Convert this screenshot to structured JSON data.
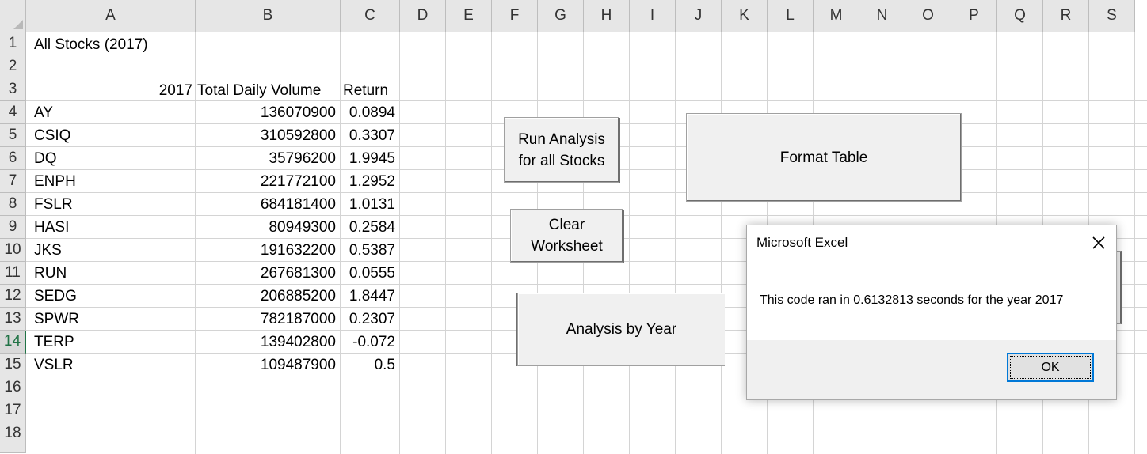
{
  "columns": [
    "A",
    "B",
    "C",
    "D",
    "E",
    "F",
    "G",
    "H",
    "I",
    "J",
    "K",
    "L",
    "M",
    "N",
    "O",
    "P",
    "Q",
    "R",
    "S"
  ],
  "rows": [
    "1",
    "2",
    "3",
    "4",
    "5",
    "6",
    "7",
    "8",
    "9",
    "10",
    "11",
    "12",
    "13",
    "14",
    "15",
    "16",
    "17",
    "18"
  ],
  "active_row": "14",
  "title_cell": "All Stocks (2017)",
  "headers": {
    "year": "2017",
    "volume": "Total Daily Volume",
    "return": "Return"
  },
  "table": [
    {
      "ticker": "AY",
      "volume": "136070900",
      "ret": "0.0894"
    },
    {
      "ticker": "CSIQ",
      "volume": "310592800",
      "ret": "0.3307"
    },
    {
      "ticker": "DQ",
      "volume": "35796200",
      "ret": "1.9945"
    },
    {
      "ticker": "ENPH",
      "volume": "221772100",
      "ret": "1.2952"
    },
    {
      "ticker": "FSLR",
      "volume": "684181400",
      "ret": "1.0131"
    },
    {
      "ticker": "HASI",
      "volume": "80949300",
      "ret": "0.2584"
    },
    {
      "ticker": "JKS",
      "volume": "191632200",
      "ret": "0.5387"
    },
    {
      "ticker": "RUN",
      "volume": "267681300",
      "ret": "0.0555"
    },
    {
      "ticker": "SEDG",
      "volume": "206885200",
      "ret": "1.8447"
    },
    {
      "ticker": "SPWR",
      "volume": "782187000",
      "ret": "0.2307"
    },
    {
      "ticker": "TERP",
      "volume": "139402800",
      "ret": "-0.072"
    },
    {
      "ticker": "VSLR",
      "volume": "109487900",
      "ret": "0.5"
    }
  ],
  "buttons": {
    "run_analysis": [
      "Run Analysis",
      "for all Stocks"
    ],
    "clear_worksheet": [
      "Clear",
      "Worksheet"
    ],
    "analysis_by_year": "Analysis by Year",
    "format_table": "Format Table"
  },
  "dialog": {
    "title": "Microsoft Excel",
    "message": "This code ran in 0.6132813 seconds for the year 2017",
    "ok_label": "OK"
  },
  "colors": {
    "header_bg": "#e6e6e6",
    "gridline": "#d4d4d4",
    "active": "#217346",
    "focus": "#0078d7"
  }
}
